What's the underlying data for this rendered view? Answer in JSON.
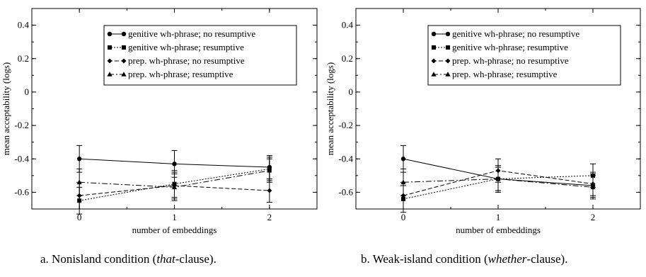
{
  "chart_data": [
    {
      "type": "line",
      "caption": {
        "prefix": "a. Nonisland condition (",
        "emph": "that",
        "suffix": "-clause)."
      },
      "xlabel": "number of embeddings",
      "ylabel": "mean acceptability (logs)",
      "xlim": [
        -0.5,
        2.5
      ],
      "ylim": [
        -0.7,
        0.5
      ],
      "x": [
        0,
        1,
        2
      ],
      "xticks": [
        "0",
        "1",
        "2"
      ],
      "yticks": [
        "0.4",
        "0.2",
        "0",
        "-0.2",
        "-0.4",
        "-0.6"
      ],
      "yticks_values": [
        0.4,
        0.2,
        0,
        -0.2,
        -0.4,
        -0.6
      ],
      "legend_position": "top-right",
      "series": [
        {
          "name": "genitive wh-phrase; no resumptive",
          "values": [
            -0.4,
            -0.43,
            -0.45
          ],
          "errors": [
            0.08,
            0.08,
            0.07
          ],
          "marker": "circle",
          "dash": ""
        },
        {
          "name": "genitive wh-phrase; resumptive",
          "values": [
            -0.65,
            -0.55,
            -0.46
          ],
          "errors": [
            0.08,
            0.08,
            0.07
          ],
          "marker": "square",
          "dash": "2,2"
        },
        {
          "name": "prep. wh-phrase; no resumptive",
          "values": [
            -0.62,
            -0.56,
            -0.59
          ],
          "errors": [
            0.08,
            0.08,
            0.07
          ],
          "marker": "diamond",
          "dash": "6,3"
        },
        {
          "name": "prep. wh-phrase; resumptive",
          "values": [
            -0.54,
            -0.57,
            -0.47
          ],
          "errors": [
            0.08,
            0.08,
            0.07
          ],
          "marker": "triangle",
          "dash": "8,3,2,3"
        }
      ]
    },
    {
      "type": "line",
      "caption": {
        "prefix": "b. Weak-island condition (",
        "emph": "whether",
        "suffix": "-clause)."
      },
      "xlabel": "number of embeddings",
      "ylabel": "mean acceptability (logs)",
      "xlim": [
        -0.5,
        2.5
      ],
      "ylim": [
        -0.7,
        0.5
      ],
      "x": [
        0,
        1,
        2
      ],
      "xticks": [
        "0",
        "1",
        "2"
      ],
      "yticks": [
        "0.4",
        "0.2",
        "0",
        "-0.2",
        "-0.4",
        "-0.6"
      ],
      "yticks_values": [
        0.4,
        0.2,
        0,
        -0.2,
        -0.4,
        -0.6
      ],
      "legend_position": "top-right",
      "series": [
        {
          "name": "genitive wh-phrase; no resumptive",
          "values": [
            -0.4,
            -0.52,
            -0.56
          ],
          "errors": [
            0.08,
            0.07,
            0.07
          ],
          "marker": "circle",
          "dash": ""
        },
        {
          "name": "genitive wh-phrase; resumptive",
          "values": [
            -0.64,
            -0.52,
            -0.5
          ],
          "errors": [
            0.08,
            0.08,
            0.07
          ],
          "marker": "square",
          "dash": "2,2"
        },
        {
          "name": "prep. wh-phrase; no resumptive",
          "values": [
            -0.62,
            -0.47,
            -0.55
          ],
          "errors": [
            0.08,
            0.07,
            0.07
          ],
          "marker": "diamond",
          "dash": "6,3"
        },
        {
          "name": "prep. wh-phrase; resumptive",
          "values": [
            -0.54,
            -0.52,
            -0.57
          ],
          "errors": [
            0.08,
            0.07,
            0.07
          ],
          "marker": "triangle",
          "dash": "8,3,2,3"
        }
      ]
    }
  ]
}
